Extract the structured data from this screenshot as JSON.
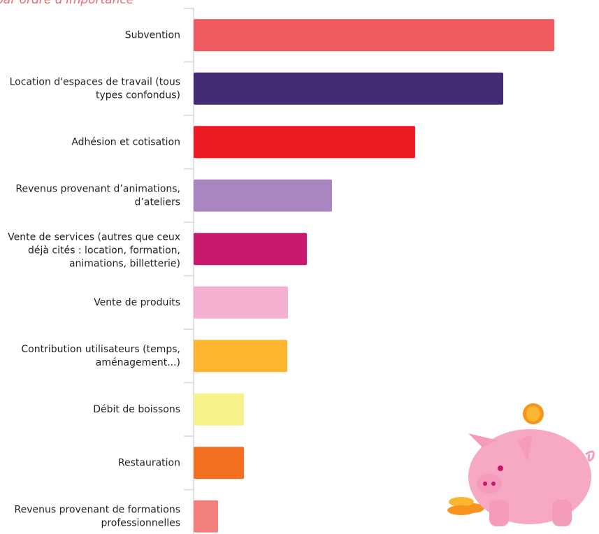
{
  "chart_data": {
    "type": "bar",
    "orientation": "horizontal",
    "subtitle": "par ordre d'importance",
    "categories": [
      [
        "Subvention"
      ],
      [
        "Location d'espaces de travail (tous",
        "types confondus)"
      ],
      [
        "Adhésion et cotisation"
      ],
      [
        "Revenus provenant d’animations,",
        "d’ateliers"
      ],
      [
        "Vente de services (autres que ceux",
        "déjà cités : location, formation,",
        "animations, billetterie)"
      ],
      [
        "Vente de produits"
      ],
      [
        "Contribution utilisateurs (temps,",
        "aménagement...)"
      ],
      [
        "Débit de boissons"
      ],
      [
        "Restauration"
      ],
      [
        "Revenus provenant de formations",
        "professionnelles"
      ]
    ],
    "values": [
      516,
      443,
      317,
      198,
      162,
      135,
      134,
      72,
      72,
      35
    ],
    "colors": [
      "#f05a5e",
      "#432a72",
      "#ed1c24",
      "#a986c0",
      "#c8186e",
      "#f5afd0",
      "#fbb52f",
      "#f5f38a",
      "#f37020",
      "#f27f7a"
    ],
    "xlim": [
      0,
      580
    ]
  }
}
